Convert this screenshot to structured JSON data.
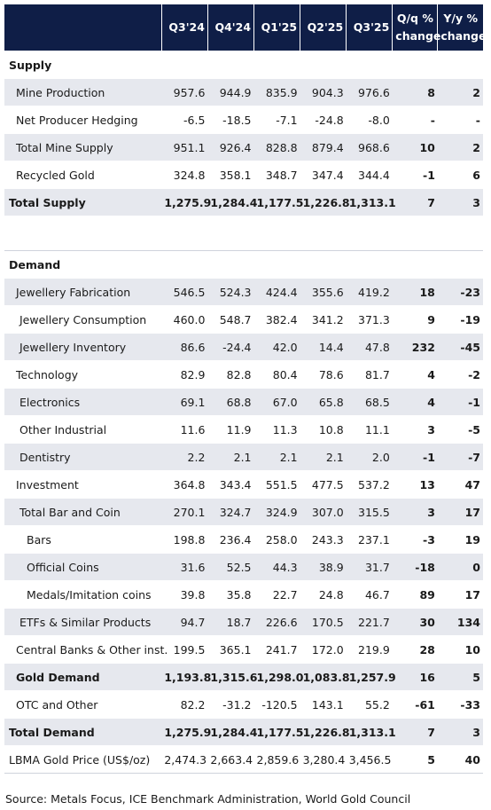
{
  "header": {
    "columns": [
      "Q3'24",
      "Q4'24",
      "Q1'25",
      "Q2'25",
      "Q3'25",
      "Q/q %\nchange",
      "Y/y %\nchange"
    ]
  },
  "supply": {
    "title": "Supply",
    "rows": [
      {
        "label": "Mine Production",
        "values": [
          "957.6",
          "944.9",
          "835.9",
          "904.3",
          "976.6",
          "8",
          "2"
        ]
      },
      {
        "label": "Net Producer Hedging",
        "values": [
          "-6.5",
          "-18.5",
          "-7.1",
          "-24.8",
          "-8.0",
          "-",
          "-"
        ]
      },
      {
        "label": "Total Mine Supply",
        "values": [
          "951.1",
          "926.4",
          "828.8",
          "879.4",
          "968.6",
          "10",
          "2"
        ]
      },
      {
        "label": "Recycled Gold",
        "values": [
          "324.8",
          "358.1",
          "348.7",
          "347.4",
          "344.4",
          "-1",
          "6"
        ]
      },
      {
        "label": "Total Supply",
        "values": [
          "1,275.9",
          "1,284.4",
          "1,177.5",
          "1,226.8",
          "1,313.1",
          "7",
          "3"
        ]
      }
    ]
  },
  "demand": {
    "title": "Demand",
    "rows": [
      {
        "label": "Jewellery Fabrication",
        "values": [
          "546.5",
          "524.3",
          "424.4",
          "355.6",
          "419.2",
          "18",
          "-23"
        ]
      },
      {
        "label": "Jewellery Consumption",
        "values": [
          "460.0",
          "548.7",
          "382.4",
          "341.2",
          "371.3",
          "9",
          "-19"
        ]
      },
      {
        "label": "Jewellery Inventory",
        "values": [
          "86.6",
          "-24.4",
          "42.0",
          "14.4",
          "47.8",
          "232",
          "-45"
        ]
      },
      {
        "label": "Technology",
        "values": [
          "82.9",
          "82.8",
          "80.4",
          "78.6",
          "81.7",
          "4",
          "-2"
        ]
      },
      {
        "label": "Electronics",
        "values": [
          "69.1",
          "68.8",
          "67.0",
          "65.8",
          "68.5",
          "4",
          "-1"
        ]
      },
      {
        "label": "Other Industrial",
        "values": [
          "11.6",
          "11.9",
          "11.3",
          "10.8",
          "11.1",
          "3",
          "-5"
        ]
      },
      {
        "label": "Dentistry",
        "values": [
          "2.2",
          "2.1",
          "2.1",
          "2.1",
          "2.0",
          "-1",
          "-7"
        ]
      },
      {
        "label": "Investment",
        "values": [
          "364.8",
          "343.4",
          "551.5",
          "477.5",
          "537.2",
          "13",
          "47"
        ]
      },
      {
        "label": "Total Bar and Coin",
        "values": [
          "270.1",
          "324.7",
          "324.9",
          "307.0",
          "315.5",
          "3",
          "17"
        ]
      },
      {
        "label": "Bars",
        "values": [
          "198.8",
          "236.4",
          "258.0",
          "243.3",
          "237.1",
          "-3",
          "19"
        ]
      },
      {
        "label": "Official Coins",
        "values": [
          "31.6",
          "52.5",
          "44.3",
          "38.9",
          "31.7",
          "-18",
          "0"
        ]
      },
      {
        "label": "Medals/Imitation coins",
        "values": [
          "39.8",
          "35.8",
          "22.7",
          "24.8",
          "46.7",
          "89",
          "17"
        ]
      },
      {
        "label": "ETFs & Similar Products",
        "values": [
          "94.7",
          "18.7",
          "226.6",
          "170.5",
          "221.7",
          "30",
          "134"
        ]
      },
      {
        "label": "Central Banks & Other inst.",
        "values": [
          "199.5",
          "365.1",
          "241.7",
          "172.0",
          "219.9",
          "28",
          "10"
        ]
      },
      {
        "label": "Gold Demand",
        "values": [
          "1,193.8",
          "1,315.6",
          "1,298.0",
          "1,083.8",
          "1,257.9",
          "16",
          "5"
        ]
      },
      {
        "label": "OTC and Other",
        "values": [
          "82.2",
          "-31.2",
          "-120.5",
          "143.1",
          "55.2",
          "-61",
          "-33"
        ]
      },
      {
        "label": "Total Demand",
        "values": [
          "1,275.9",
          "1,284.4",
          "1,177.5",
          "1,226.8",
          "1,313.1",
          "7",
          "3"
        ]
      }
    ]
  },
  "price": {
    "label": "LBMA Gold Price (US$/oz)",
    "values": [
      "2,474.3",
      "2,663.4",
      "2,859.6",
      "3,280.4",
      "3,456.5",
      "5",
      "40"
    ]
  },
  "source": "Source: Metals Focus, ICE Benchmark Administration, World Gold Council"
}
